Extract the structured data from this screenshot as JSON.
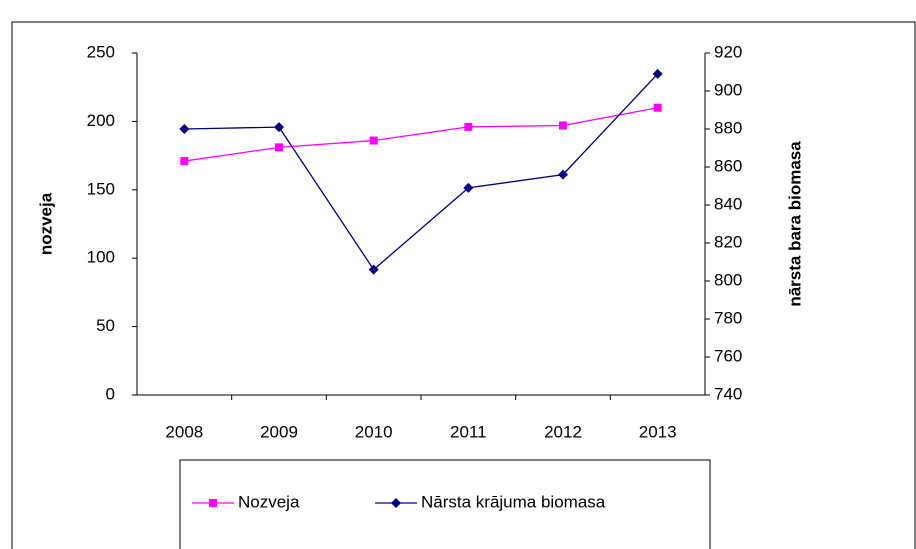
{
  "chart_data": {
    "type": "line",
    "categories": [
      "2008",
      "2009",
      "2010",
      "2011",
      "2012",
      "2013"
    ],
    "y_label": "nozveja",
    "y2_label": "nārsta bara biomasa",
    "ylim": [
      0,
      250
    ],
    "yticks": [
      0,
      50,
      100,
      150,
      200,
      250
    ],
    "y2lim": [
      740,
      920
    ],
    "y2ticks": [
      740,
      760,
      780,
      800,
      820,
      840,
      860,
      880,
      900,
      920
    ],
    "series": [
      {
        "name": "Nozveja",
        "color": "#ff00ff",
        "marker": "square",
        "values": [
          171,
          181,
          186,
          196,
          197,
          210
        ]
      },
      {
        "name": "Nārsta krājuma biomasa",
        "color": "#000080",
        "marker": "diamond",
        "axis": "y2",
        "values": [
          880,
          881,
          806,
          849,
          856,
          909
        ]
      }
    ]
  }
}
